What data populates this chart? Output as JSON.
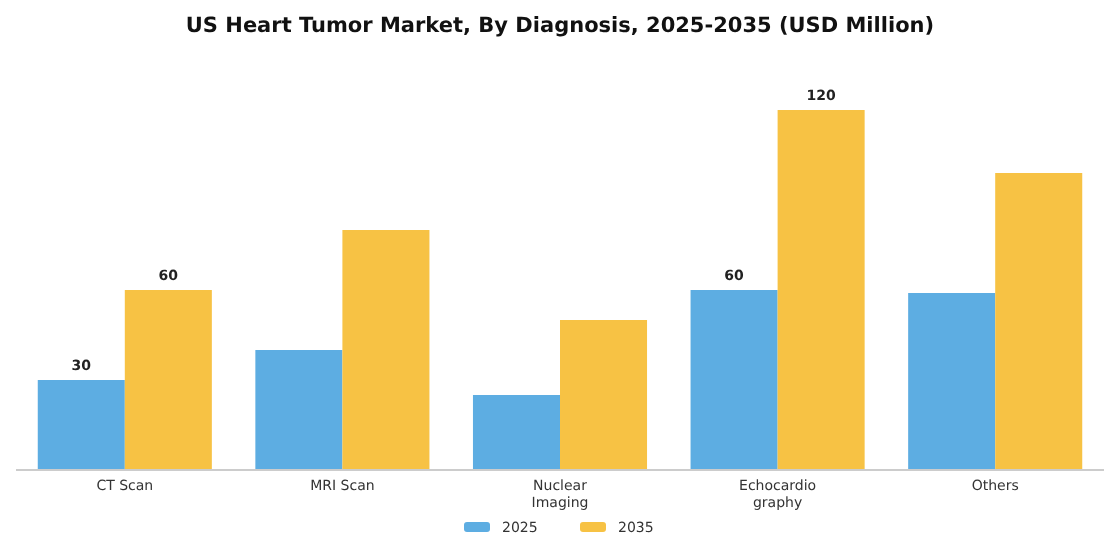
{
  "chart_data": {
    "type": "bar",
    "title": "US Heart Tumor Market, By Diagnosis, 2025-2035 (USD Million)",
    "categories": [
      "CT Scan",
      "MRI Scan",
      "Nuclear\nImaging",
      "Echocardio\ngraphy",
      "Others"
    ],
    "series": [
      {
        "name": "2025",
        "color": "#5dade2",
        "values": [
          30,
          40,
          25,
          60,
          59
        ],
        "value_labels": [
          "30",
          null,
          null,
          "60",
          null
        ]
      },
      {
        "name": "2035",
        "color": "#f7c244",
        "values": [
          60,
          80,
          50,
          120,
          99
        ],
        "value_labels": [
          "60",
          null,
          null,
          "120",
          null
        ]
      }
    ],
    "legend": "bottom",
    "grid": false
  }
}
